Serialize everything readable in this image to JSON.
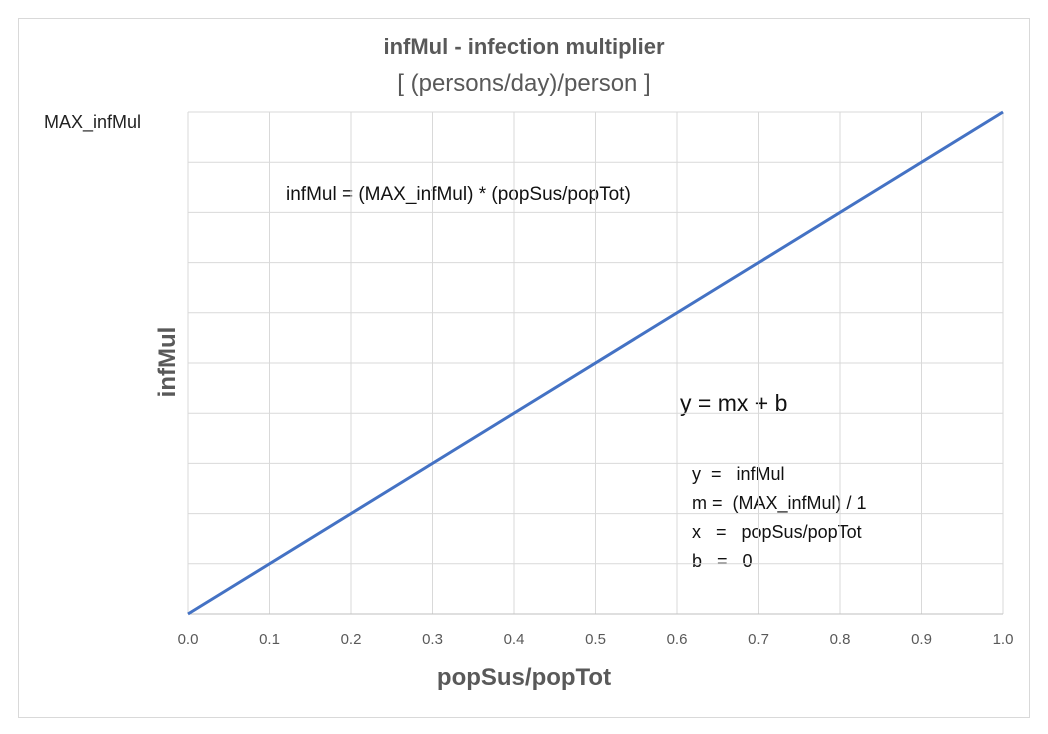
{
  "chart_data": {
    "type": "line",
    "title": "infMul - infection multiplier",
    "subtitle": "[ (persons/day)/person ]",
    "xlabel": "popSus/popTot",
    "ylabel": "infMul",
    "xlim": [
      0.0,
      1.0
    ],
    "ylim": [
      0,
      1
    ],
    "x_ticks": [
      "0.0",
      "0.1",
      "0.2",
      "0.3",
      "0.4",
      "0.5",
      "0.6",
      "0.7",
      "0.8",
      "0.9",
      "1.0"
    ],
    "y_top_label": "MAX_infMul",
    "grid": true,
    "line_color": "#4472c4",
    "series": [
      {
        "x": [
          0.0,
          1.0
        ],
        "values": [
          0,
          1
        ]
      }
    ],
    "annotations": {
      "formula": "infMul = (MAX_infMul) * (popSus/popTot)",
      "linear_form": "y = mx + b",
      "definitions": [
        "y  =   infMul",
        "m =  (MAX_infMul) / 1",
        "x   =   popSus/popTot",
        "b   =   0"
      ]
    }
  }
}
